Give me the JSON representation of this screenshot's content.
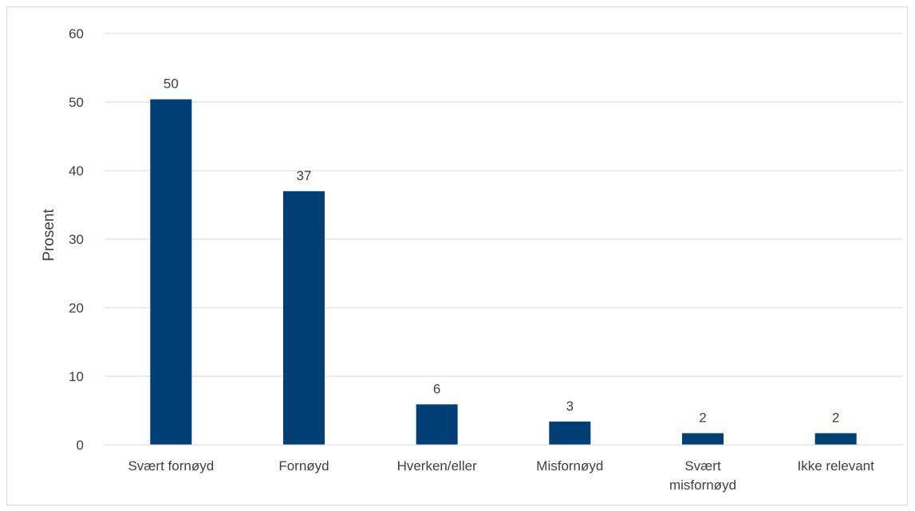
{
  "chart_data": {
    "type": "bar",
    "title": "",
    "xlabel": "",
    "ylabel": "Prosent",
    "ylim": [
      0,
      60
    ],
    "yticks": [
      0,
      10,
      20,
      30,
      40,
      50,
      60
    ],
    "grid": true,
    "legend": "none",
    "bar_color": "#003F76",
    "categories": [
      [
        "Svært fornøyd"
      ],
      [
        "Fornøyd"
      ],
      [
        "Hverken/eller"
      ],
      [
        "Misfornøyd"
      ],
      [
        "Svært",
        "misfornøyd"
      ],
      [
        "Ikke relevant"
      ]
    ],
    "values": [
      50.4,
      37,
      5.9,
      3.4,
      1.7,
      1.7
    ],
    "data_labels": [
      "50",
      "37",
      "6",
      "3",
      "2",
      "2"
    ]
  }
}
